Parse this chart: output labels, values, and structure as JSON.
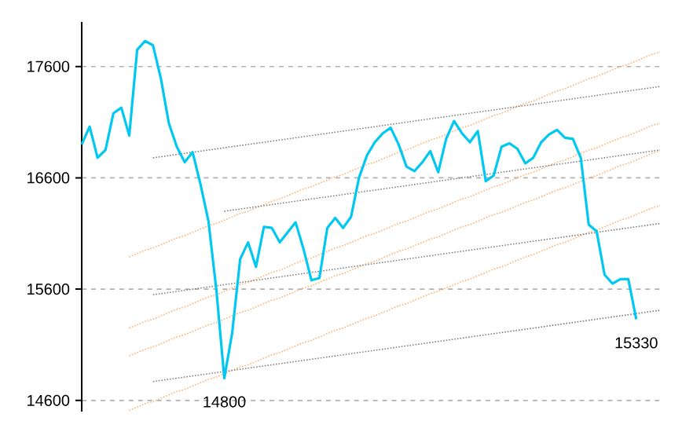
{
  "chart_data": {
    "type": "line",
    "categories": [
      null,
      null,
      null,
      null,
      null,
      null,
      null,
      null,
      null,
      null,
      null,
      null,
      null,
      null,
      null,
      null,
      null,
      null,
      null,
      null,
      null,
      null,
      null,
      null,
      null,
      null,
      null,
      null,
      null,
      null,
      null,
      null,
      null,
      null,
      null,
      null,
      null,
      null,
      null,
      null,
      null,
      null,
      null,
      null,
      null,
      null,
      null,
      null,
      null,
      null,
      null,
      null,
      null,
      null,
      null,
      null,
      null,
      null,
      null,
      null,
      null,
      null,
      null,
      null,
      null,
      null,
      null,
      null,
      null,
      null,
      null,
      null,
      null,
      null
    ],
    "ylim": [
      14500,
      18000
    ],
    "yticks": [
      14600,
      15600,
      16600,
      17600
    ],
    "grid": "y",
    "tick_labels": "y",
    "marker": "none",
    "series": [
      {
        "color": "#00c8f0",
        "line_style": "solid",
        "values": [
          16900,
          17060,
          16780,
          16850,
          17180,
          17230,
          16980,
          17750,
          17830,
          17790,
          17490,
          17090,
          16880,
          16740,
          16830,
          16540,
          16210,
          15590,
          14800,
          15210,
          15870,
          16020,
          15800,
          16160,
          16150,
          16020,
          16110,
          16200,
          15960,
          15680,
          15700,
          16150,
          16240,
          16150,
          16250,
          16600,
          16800,
          16920,
          17000,
          17050,
          16900,
          16700,
          16660,
          16740,
          16840,
          16650,
          16950,
          17110,
          17000,
          16920,
          17020,
          16570,
          16620,
          16880,
          16910,
          16860,
          16730,
          16780,
          16920,
          16990,
          17030,
          16960,
          16950,
          16780,
          16180,
          16120,
          15730,
          15650,
          15690,
          15690,
          15330,
          null,
          null,
          null
        ]
      },
      {
        "type": "line",
        "color": "#ffb070",
        "line_style": "dotted",
        "values": [
          null,
          null,
          null,
          null,
          null,
          null,
          15890,
          15920,
          15950,
          15970,
          16000,
          16030,
          16060,
          16080,
          16110,
          16140,
          16170,
          16190,
          16220,
          16250,
          16280,
          16300,
          16330,
          16360,
          16390,
          16410,
          16440,
          16470,
          16500,
          16520,
          16550,
          16580,
          16610,
          16630,
          16660,
          16690,
          16720,
          16740,
          16770,
          16800,
          16830,
          16850,
          16880,
          16910,
          16940,
          16960,
          16990,
          17020,
          17050,
          17070,
          17100,
          17130,
          17160,
          17180,
          17210,
          17240,
          17270,
          17290,
          17320,
          17350,
          17380,
          17400,
          17430,
          17460,
          17490,
          17510,
          17540,
          17570,
          17600,
          17620,
          17650,
          17680,
          17710,
          17730
        ]
      },
      {
        "type": "line",
        "color": "#ffb070",
        "line_style": "dotted",
        "values": [
          null,
          null,
          null,
          null,
          null,
          null,
          15250,
          15280,
          15310,
          15330,
          15360,
          15390,
          15420,
          15440,
          15470,
          15500,
          15530,
          15550,
          15580,
          15610,
          15640,
          15660,
          15690,
          15720,
          15750,
          15770,
          15800,
          15830,
          15860,
          15880,
          15910,
          15940,
          15970,
          15990,
          16020,
          16050,
          16080,
          16100,
          16130,
          16160,
          16190,
          16210,
          16240,
          16270,
          16300,
          16320,
          16350,
          16380,
          16410,
          16430,
          16460,
          16490,
          16520,
          16540,
          16570,
          16600,
          16630,
          16650,
          16680,
          16710,
          16740,
          16760,
          16790,
          16820,
          16850,
          16870,
          16900,
          16930,
          16960,
          16980,
          17010,
          17040,
          17070,
          17090
        ]
      },
      {
        "type": "line",
        "color": "#ffb070",
        "line_style": "dotted",
        "values": [
          null,
          null,
          null,
          null,
          null,
          null,
          15000,
          15030,
          15060,
          15080,
          15110,
          15140,
          15170,
          15190,
          15220,
          15250,
          15280,
          15300,
          15330,
          15360,
          15390,
          15410,
          15440,
          15470,
          15500,
          15520,
          15550,
          15580,
          15610,
          15630,
          15660,
          15690,
          15720,
          15740,
          15770,
          15800,
          15830,
          15850,
          15880,
          15910,
          15940,
          15960,
          15990,
          16020,
          16050,
          16070,
          16100,
          16130,
          16160,
          16180,
          16210,
          16240,
          16270,
          16290,
          16320,
          16350,
          16380,
          16400,
          16430,
          16460,
          16490,
          16510,
          16540,
          16570,
          16600,
          16620,
          16650,
          16680,
          16710,
          16730,
          16760,
          16790,
          16820,
          16840
        ]
      },
      {
        "type": "line",
        "color": "#ffb070",
        "line_style": "dotted",
        "values": [
          null,
          null,
          null,
          null,
          null,
          null,
          14510,
          14540,
          14570,
          14590,
          14620,
          14650,
          14680,
          14700,
          14730,
          14760,
          14790,
          14810,
          14840,
          14870,
          14900,
          14920,
          14950,
          14980,
          15010,
          15030,
          15060,
          15090,
          15120,
          15140,
          15170,
          15200,
          15230,
          15250,
          15280,
          15310,
          15340,
          15360,
          15390,
          15420,
          15450,
          15470,
          15500,
          15530,
          15560,
          15580,
          15610,
          15640,
          15670,
          15690,
          15720,
          15750,
          15780,
          15800,
          15830,
          15860,
          15890,
          15910,
          15940,
          15970,
          16000,
          16020,
          16050,
          16080,
          16110,
          16130,
          16160,
          16190,
          16220,
          16240,
          16270,
          16300,
          16330,
          16350
        ]
      },
      {
        "type": "line",
        "color": "#808080",
        "line_style": "dotted",
        "values": [
          null,
          null,
          null,
          null,
          null,
          null,
          null,
          null,
          null,
          16780,
          16790,
          16800,
          16810,
          16820,
          16830,
          16840,
          16850,
          16860,
          16870,
          16880,
          16890,
          16900,
          16910,
          16920,
          16930,
          16940,
          16950,
          16960,
          16970,
          16980,
          16990,
          17000,
          17010,
          17020,
          17030,
          17040,
          17050,
          17060,
          17070,
          17080,
          17090,
          17100,
          17110,
          17120,
          17130,
          17140,
          17150,
          17160,
          17170,
          17180,
          17190,
          17200,
          17210,
          17220,
          17230,
          17240,
          17250,
          17260,
          17270,
          17280,
          17290,
          17300,
          17310,
          17320,
          17330,
          17340,
          17350,
          17360,
          17370,
          17380,
          17390,
          17400,
          17410,
          17420
        ]
      },
      {
        "type": "line",
        "color": "#808080",
        "line_style": "dotted",
        "values": [
          null,
          null,
          null,
          null,
          null,
          null,
          null,
          null,
          null,
          null,
          null,
          null,
          null,
          null,
          null,
          null,
          null,
          null,
          16300,
          16310,
          16320,
          16330,
          16340,
          16350,
          16360,
          16370,
          16380,
          16390,
          16400,
          16410,
          16420,
          16430,
          16440,
          16450,
          16460,
          16470,
          16480,
          16490,
          16500,
          16510,
          16520,
          16530,
          16540,
          16550,
          16560,
          16570,
          16580,
          16590,
          16600,
          16610,
          16620,
          16630,
          16640,
          16650,
          16660,
          16670,
          16680,
          16690,
          16700,
          16710,
          16720,
          16730,
          16740,
          16750,
          16760,
          16770,
          16780,
          16790,
          16800,
          16810,
          16820,
          16830,
          16840,
          16850
        ]
      },
      {
        "type": "line",
        "color": "#808080",
        "line_style": "dotted",
        "values": [
          null,
          null,
          null,
          null,
          null,
          null,
          null,
          null,
          null,
          15550,
          15560,
          15570,
          15580,
          15590,
          15600,
          15610,
          15620,
          15630,
          15640,
          15650,
          15660,
          15670,
          15680,
          15690,
          15700,
          15710,
          15720,
          15730,
          15740,
          15750,
          15760,
          15770,
          15780,
          15790,
          15800,
          15810,
          15820,
          15830,
          15840,
          15850,
          15860,
          15870,
          15880,
          15890,
          15900,
          15910,
          15920,
          15930,
          15940,
          15950,
          15960,
          15970,
          15980,
          15990,
          16000,
          16010,
          16020,
          16030,
          16040,
          16050,
          16060,
          16070,
          16080,
          16090,
          16100,
          16110,
          16120,
          16130,
          16140,
          16150,
          16160,
          16170,
          16180,
          16190
        ]
      },
      {
        "type": "line",
        "color": "#808080",
        "line_style": "dotted",
        "values": [
          null,
          null,
          null,
          null,
          null,
          null,
          null,
          null,
          null,
          14770,
          14780,
          14790,
          14800,
          14810,
          14820,
          14830,
          14840,
          14850,
          14860,
          14870,
          14880,
          14890,
          14900,
          14910,
          14920,
          14930,
          14940,
          14950,
          14960,
          14970,
          14980,
          14990,
          15000,
          15010,
          15020,
          15030,
          15040,
          15050,
          15060,
          15070,
          15080,
          15090,
          15100,
          15110,
          15120,
          15130,
          15140,
          15150,
          15160,
          15170,
          15180,
          15190,
          15200,
          15210,
          15220,
          15230,
          15240,
          15250,
          15260,
          15270,
          15280,
          15290,
          15300,
          15310,
          15320,
          15330,
          15340,
          15350,
          15360,
          15370,
          15380,
          15390,
          15400,
          15410
        ]
      }
    ],
    "annotations": [
      {
        "text": "14800",
        "y": 14800
      },
      {
        "text": "15330",
        "y": 15330
      }
    ]
  }
}
